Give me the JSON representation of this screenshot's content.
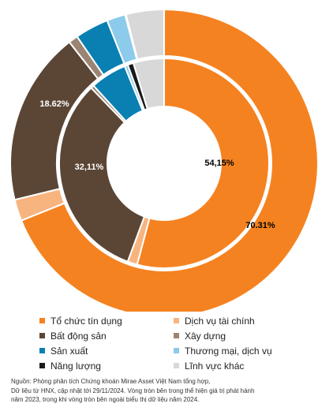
{
  "chart_data": {
    "type": "donut",
    "categories": [
      "Tổ chức tín dụng",
      "Dịch vụ tài chính",
      "Bất động sản",
      "Xây dựng",
      "Sản xuất",
      "Thương mại, dịch vụ",
      "Năng lượng",
      "Lĩnh vực khác"
    ],
    "colors": [
      "#F58220",
      "#F8B47F",
      "#5B4636",
      "#9B8474",
      "#0A7FB2",
      "#8DCBEB",
      "#1A1A1A",
      "#D8D8D8"
    ],
    "series": [
      {
        "ring": "outer",
        "values": [
          70.31,
          2.3,
          18.62,
          1.0,
          3.6,
          2.0,
          0.1,
          4.07
        ],
        "labels": [
          "70.31%",
          "",
          "18.62%",
          "",
          "",
          "",
          "",
          ""
        ]
      },
      {
        "ring": "inner",
        "values": [
          54.15,
          1.5,
          32.11,
          0.5,
          5.6,
          0.5,
          0.9,
          4.74
        ],
        "labels": [
          "54,15%",
          "",
          "32,11%",
          "",
          "",
          "",
          "",
          ""
        ]
      }
    ]
  },
  "legend": {
    "items": [
      {
        "label": "Tổ chức tín dụng",
        "color": "#F58220"
      },
      {
        "label": "Dịch vụ tài chính",
        "color": "#F8B47F"
      },
      {
        "label": "Bất động sản",
        "color": "#5B4636"
      },
      {
        "label": "Xây dựng",
        "color": "#9B8474"
      },
      {
        "label": "Sản xuất",
        "color": "#0A7FB2"
      },
      {
        "label": "Thương mại, dịch vụ",
        "color": "#8DCBEB"
      },
      {
        "label": "Năng lượng",
        "color": "#1A1A1A"
      },
      {
        "label": "Lĩnh vực khác",
        "color": "#D8D8D8"
      }
    ]
  },
  "source": {
    "line1": "Nguồn: Phòng phân tích Chứng khoán Mirae Asset Việt Nam tổng hợp,",
    "line2": "Dữ liệu từ HNX, cập nhật tới 29/11/2024. Vòng tròn bên trong thể hiện giá trị phát hành",
    "line3": "năm 2023, trong khi vòng tròn bên ngoài biểu thị dữ liệu năm 2024."
  }
}
